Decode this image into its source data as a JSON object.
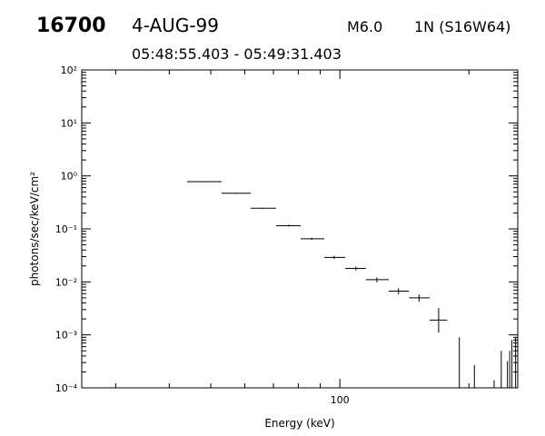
{
  "header": {
    "event_id": "16700",
    "date": "4-AUG-99",
    "flare_class": "M6.0",
    "flare_location": "1N (S16W64)",
    "time_range": "05:48:55.403 - 05:49:31.403"
  },
  "chart_data": {
    "type": "scatter",
    "title": "",
    "xlabel": "Energy (keV)",
    "ylabel": "photons/sec/keV/cm²",
    "xscale": "log",
    "yscale": "log",
    "xlim": [
      25,
      260
    ],
    "ylim": [
      0.0001,
      100
    ],
    "grid": false,
    "x_tick_labels": [
      {
        "value": 100,
        "label": "100"
      }
    ],
    "y_tick_labels": [
      {
        "value": 100,
        "label": "10²"
      },
      {
        "value": 10,
        "label": "10¹"
      },
      {
        "value": 1,
        "label": "10⁰"
      },
      {
        "value": 0.1,
        "label": "10⁻¹"
      },
      {
        "value": 0.01,
        "label": "10⁻²"
      },
      {
        "value": 0.001,
        "label": "10⁻³"
      },
      {
        "value": 0.0001,
        "label": "10⁻⁴"
      }
    ],
    "points": [
      {
        "x": 48,
        "xerr": [
          44,
          53
        ],
        "y": 0.78,
        "yerr": [
          0.76,
          0.8
        ]
      },
      {
        "x": 57,
        "xerr": [
          53,
          62
        ],
        "y": 0.47,
        "yerr": [
          0.46,
          0.48
        ]
      },
      {
        "x": 66,
        "xerr": [
          62,
          71
        ],
        "y": 0.245,
        "yerr": [
          0.24,
          0.25
        ]
      },
      {
        "x": 76,
        "xerr": [
          71,
          81
        ],
        "y": 0.115,
        "yerr": [
          0.11,
          0.12
        ]
      },
      {
        "x": 86,
        "xerr": [
          81,
          92
        ],
        "y": 0.065,
        "yerr": [
          0.062,
          0.068
        ]
      },
      {
        "x": 97,
        "xerr": [
          92,
          103
        ],
        "y": 0.029,
        "yerr": [
          0.027,
          0.031
        ]
      },
      {
        "x": 109,
        "xerr": [
          103,
          115
        ],
        "y": 0.018,
        "yerr": [
          0.0165,
          0.0195
        ]
      },
      {
        "x": 122,
        "xerr": [
          115,
          130
        ],
        "y": 0.011,
        "yerr": [
          0.0098,
          0.0122
        ]
      },
      {
        "x": 137,
        "xerr": [
          130,
          145
        ],
        "y": 0.0067,
        "yerr": [
          0.0058,
          0.0076
        ]
      },
      {
        "x": 153,
        "xerr": [
          145,
          162
        ],
        "y": 0.005,
        "yerr": [
          0.0042,
          0.0058
        ]
      },
      {
        "x": 170,
        "xerr": [
          162,
          178
        ],
        "y": 0.0019,
        "yerr": [
          0.0011,
          0.0032
        ]
      }
    ],
    "upper_limits": [
      {
        "x": 190,
        "y": 0.0009
      },
      {
        "x": 206,
        "y": 0.00027
      },
      {
        "x": 229,
        "y": 0.00014
      },
      {
        "x": 238,
        "y": 0.0005
      },
      {
        "x": 246,
        "y": 0.00032
      },
      {
        "x": 249,
        "y": 0.0005
      },
      {
        "x": 252,
        "y": 0.0008
      },
      {
        "x": 257,
        "y": 0.0009
      }
    ]
  }
}
